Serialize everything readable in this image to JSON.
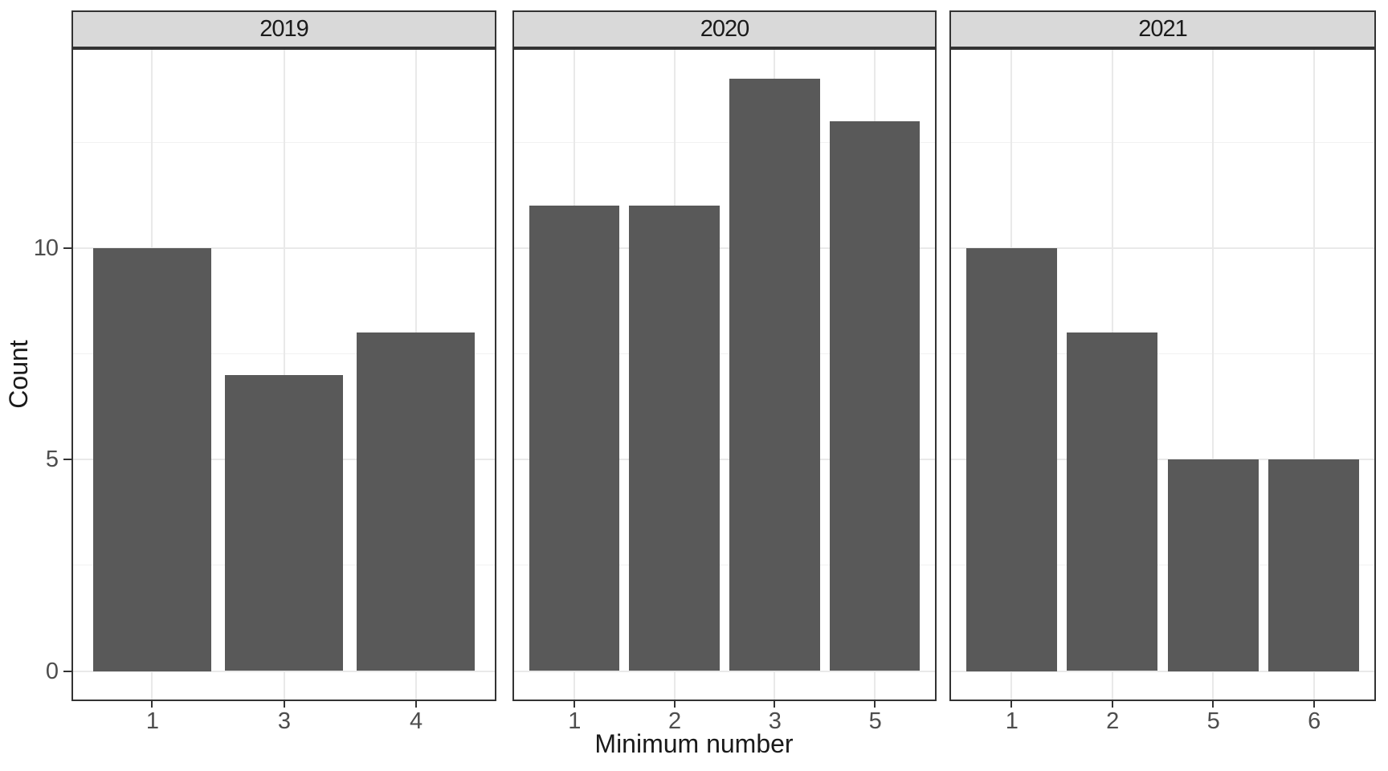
{
  "chart_data": {
    "type": "bar",
    "title": "",
    "xlabel": "Minimum number",
    "ylabel": "Count",
    "ylim": [
      0,
      14.7
    ],
    "y_major_ticks": [
      0,
      5,
      10
    ],
    "y_minor_ticks": [
      2.5,
      7.5,
      12.5
    ],
    "grid": "horizontal major+minor, vertical at categories",
    "legend": "none",
    "facets": [
      {
        "label": "2019",
        "categories": [
          "1",
          "3",
          "4"
        ],
        "values": [
          10,
          7,
          8
        ]
      },
      {
        "label": "2020",
        "categories": [
          "1",
          "2",
          "3",
          "5"
        ],
        "values": [
          11,
          11,
          14,
          13
        ]
      },
      {
        "label": "2021",
        "categories": [
          "1",
          "2",
          "5",
          "6"
        ],
        "values": [
          10,
          8,
          5,
          5
        ]
      }
    ],
    "colors": {
      "bar_fill": "#595959",
      "strip_background": "#d9d9d9",
      "panel_border": "#333333",
      "grid_major": "#e9e9e9",
      "grid_minor": "#f1f1f1",
      "tick_text": "#4d4d4d",
      "title_text": "#1a1a1a"
    }
  }
}
